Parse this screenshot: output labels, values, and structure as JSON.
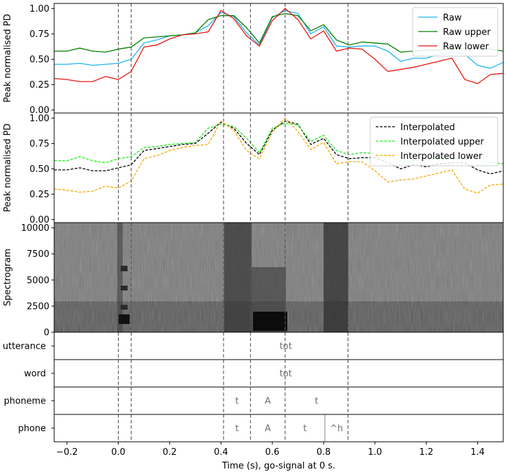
{
  "chart_data": [
    {
      "type": "line",
      "panel": "raw",
      "ylabel": "Peak normalised PD",
      "ylim": [
        -0.03,
        1.05
      ],
      "yticks": [
        "0.00",
        "0.25",
        "0.50",
        "0.75",
        "1.00"
      ],
      "ytick_values": [
        0,
        0.25,
        0.5,
        0.75,
        1.0
      ],
      "x": [
        -0.25,
        -0.2,
        -0.15,
        -0.1,
        -0.05,
        0.0,
        0.05,
        0.1,
        0.15,
        0.2,
        0.25,
        0.3,
        0.35,
        0.4,
        0.45,
        0.5,
        0.55,
        0.6,
        0.65,
        0.7,
        0.75,
        0.8,
        0.85,
        0.9,
        0.95,
        1.0,
        1.05,
        1.1,
        1.15,
        1.2,
        1.25,
        1.3,
        1.35,
        1.4,
        1.45,
        1.5
      ],
      "series": [
        {
          "name": "Raw",
          "color": "#1cb4ef",
          "dash": false,
          "values": [
            0.45,
            0.45,
            0.46,
            0.44,
            0.45,
            0.46,
            0.5,
            0.66,
            0.69,
            0.73,
            0.74,
            0.76,
            0.83,
            0.96,
            0.92,
            0.76,
            0.64,
            0.91,
            0.98,
            0.95,
            0.75,
            0.82,
            0.63,
            0.62,
            0.63,
            0.63,
            0.58,
            0.48,
            0.51,
            0.51,
            0.55,
            0.57,
            0.55,
            0.44,
            0.41,
            0.47
          ]
        },
        {
          "name": "Raw upper",
          "color": "#008000",
          "dash": false,
          "values": [
            0.58,
            0.58,
            0.61,
            0.58,
            0.57,
            0.6,
            0.62,
            0.71,
            0.72,
            0.73,
            0.74,
            0.76,
            0.89,
            0.93,
            0.93,
            0.81,
            0.66,
            0.92,
            0.95,
            0.93,
            0.78,
            0.84,
            0.69,
            0.64,
            0.67,
            0.66,
            0.65,
            0.57,
            0.58,
            0.59,
            0.59,
            0.61,
            0.6,
            0.61,
            0.6,
            0.58
          ]
        },
        {
          "name": "Raw lower",
          "color": "#e8150e",
          "dash": false,
          "values": [
            0.31,
            0.3,
            0.28,
            0.28,
            0.33,
            0.3,
            0.38,
            0.62,
            0.64,
            0.7,
            0.74,
            0.75,
            0.77,
            0.98,
            0.9,
            0.73,
            0.63,
            0.88,
            1.0,
            0.89,
            0.7,
            0.78,
            0.58,
            0.61,
            0.6,
            0.5,
            0.38,
            0.4,
            0.42,
            0.45,
            0.48,
            0.51,
            0.3,
            0.26,
            0.35,
            0.36
          ]
        }
      ],
      "legend": "top-right"
    },
    {
      "type": "line",
      "panel": "interpolated",
      "ylabel": "Peak normalised PD",
      "ylim": [
        -0.03,
        1.05
      ],
      "yticks": [
        "0.00",
        "0.25",
        "0.50",
        "0.75",
        "1.00"
      ],
      "ytick_values": [
        0,
        0.25,
        0.5,
        0.75,
        1.0
      ],
      "x": [
        -0.25,
        -0.2,
        -0.15,
        -0.1,
        -0.05,
        0.0,
        0.05,
        0.1,
        0.15,
        0.2,
        0.25,
        0.3,
        0.35,
        0.4,
        0.45,
        0.5,
        0.55,
        0.6,
        0.65,
        0.7,
        0.75,
        0.8,
        0.85,
        0.9,
        0.95,
        1.0,
        1.05,
        1.1,
        1.15,
        1.2,
        1.25,
        1.3,
        1.35,
        1.4,
        1.45,
        1.5
      ],
      "series": [
        {
          "name": "Interpolated",
          "color": "#000000",
          "dash": true,
          "values": [
            0.49,
            0.49,
            0.51,
            0.48,
            0.48,
            0.51,
            0.54,
            0.68,
            0.7,
            0.72,
            0.74,
            0.75,
            0.85,
            0.96,
            0.9,
            0.75,
            0.64,
            0.88,
            0.97,
            0.94,
            0.74,
            0.8,
            0.64,
            0.6,
            0.61,
            0.61,
            0.56,
            0.5,
            0.54,
            0.52,
            0.55,
            0.56,
            0.56,
            0.49,
            0.45,
            0.48
          ]
        },
        {
          "name": "Interpolated upper",
          "color": "#22e622",
          "dash": true,
          "values": [
            0.58,
            0.58,
            0.62,
            0.58,
            0.56,
            0.6,
            0.62,
            0.71,
            0.72,
            0.74,
            0.75,
            0.76,
            0.9,
            0.94,
            0.92,
            0.8,
            0.66,
            0.9,
            0.95,
            0.93,
            0.77,
            0.83,
            0.68,
            0.64,
            0.66,
            0.65,
            0.64,
            0.58,
            0.58,
            0.59,
            0.59,
            0.6,
            0.6,
            0.6,
            0.56,
            0.55
          ]
        },
        {
          "name": "Interpolated lower",
          "color": "#f5a800",
          "dash": true,
          "values": [
            0.3,
            0.29,
            0.27,
            0.28,
            0.33,
            0.31,
            0.38,
            0.6,
            0.63,
            0.68,
            0.71,
            0.73,
            0.74,
            0.97,
            0.88,
            0.68,
            0.6,
            0.86,
            1.0,
            0.87,
            0.69,
            0.76,
            0.55,
            0.57,
            0.57,
            0.48,
            0.37,
            0.39,
            0.4,
            0.43,
            0.46,
            0.49,
            0.3,
            0.26,
            0.34,
            0.35
          ]
        }
      ],
      "legend": "top-right"
    },
    {
      "type": "heatmap",
      "panel": "spectrogram",
      "ylabel": "Spectrogram",
      "ylim": [
        0,
        10500
      ],
      "yticks": [
        "0",
        "2500",
        "5000",
        "7500",
        "10000"
      ],
      "ytick_values": [
        0,
        2500,
        5000,
        7500,
        10000
      ],
      "colormap": "gray"
    },
    {
      "type": "table",
      "panel": "annotation-tiers",
      "tiers": [
        {
          "label": "utterance",
          "intervals": [
            {
              "text": "tot",
              "start": 0.41,
              "end": 0.895
            }
          ]
        },
        {
          "label": "word",
          "intervals": [
            {
              "text": "tot",
              "start": 0.41,
              "end": 0.895
            }
          ]
        },
        {
          "label": "phoneme",
          "intervals": [
            {
              "text": "t",
              "start": 0.41,
              "end": 0.515
            },
            {
              "text": "A",
              "start": 0.515,
              "end": 0.65
            },
            {
              "text": "t",
              "start": 0.65,
              "end": 0.895
            }
          ]
        },
        {
          "label": "phone",
          "intervals": [
            {
              "text": "t",
              "start": 0.41,
              "end": 0.515
            },
            {
              "text": "A",
              "start": 0.515,
              "end": 0.65
            },
            {
              "text": "t",
              "start": 0.65,
              "end": 0.805
            },
            {
              "text": "^h",
              "start": 0.805,
              "end": 0.895
            }
          ]
        }
      ]
    }
  ],
  "xaxis": {
    "label": "Time (s), go-signal at 0 s.",
    "xlim": [
      -0.25,
      1.5
    ],
    "ticks": [
      "−0.2",
      "0.0",
      "0.2",
      "0.4",
      "0.6",
      "0.8",
      "1.0",
      "1.2",
      "1.4"
    ],
    "tick_values": [
      -0.2,
      0.0,
      0.2,
      0.4,
      0.6,
      0.8,
      1.0,
      1.2,
      1.4
    ]
  },
  "event_lines": [
    0.0,
    0.05,
    0.41,
    0.515,
    0.65,
    0.895
  ]
}
